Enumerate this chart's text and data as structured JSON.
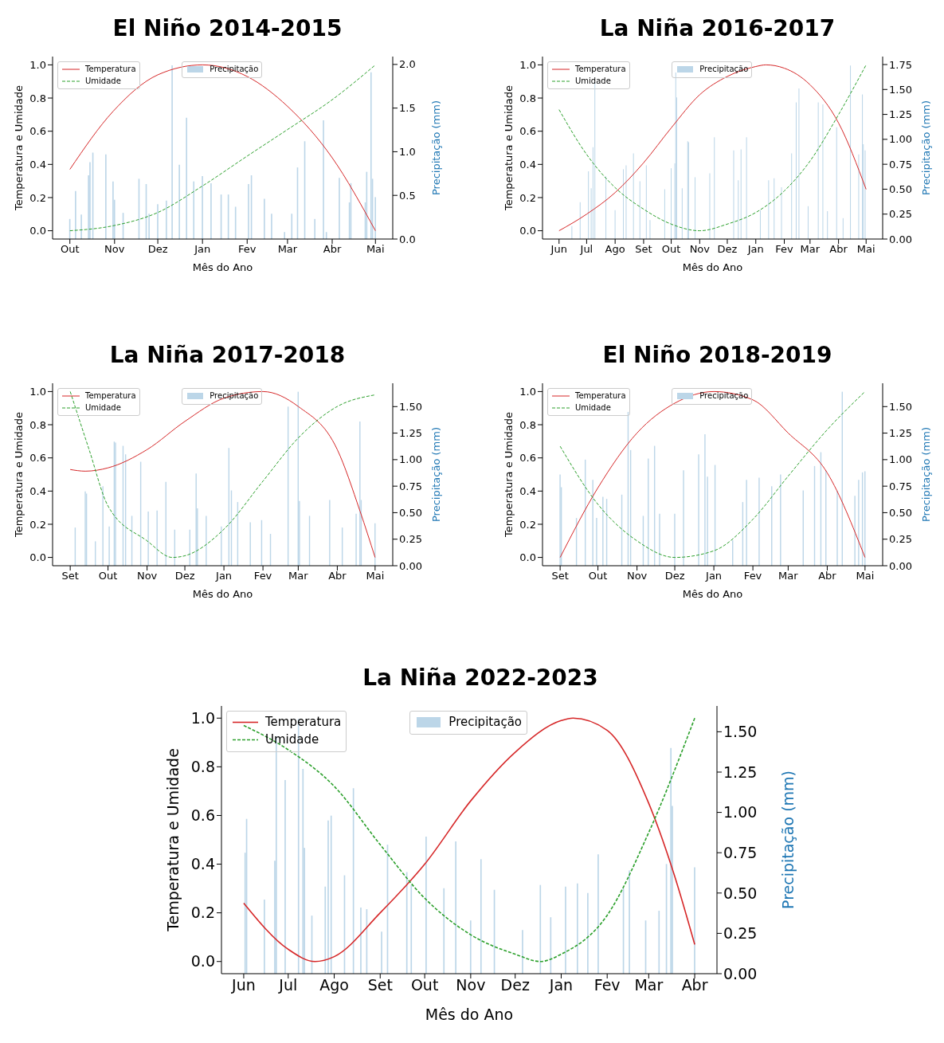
{
  "chart_data": [
    {
      "type": "bar",
      "title": "El Niño 2014-2015",
      "xlabel": "Mês do Ano",
      "ylabel": "Temperatura e Umidade",
      "y2label": "Precipitação (mm)",
      "legend": "top",
      "xlim": [
        "2014-09-19",
        "2015-05-13"
      ],
      "xticks": [
        {
          "value": "2014-10-01",
          "label": "Out"
        },
        {
          "value": "2014-11-01",
          "label": "Nov"
        },
        {
          "value": "2014-12-01",
          "label": "Dez"
        },
        {
          "value": "2015-01-01",
          "label": "Jan"
        },
        {
          "value": "2015-02-01",
          "label": "Fev"
        },
        {
          "value": "2015-03-01",
          "label": "Mar"
        },
        {
          "value": "2015-04-01",
          "label": "Abr"
        },
        {
          "value": "2015-05-01",
          "label": "Mai"
        }
      ],
      "ylim": [
        -0.05,
        1.05
      ],
      "yticks": [
        {
          "value": 0,
          "label": "0.0"
        },
        {
          "value": 0.2,
          "label": "0.2"
        },
        {
          "value": 0.4,
          "label": "0.4"
        },
        {
          "value": 0.6,
          "label": "0.6"
        },
        {
          "value": 0.8,
          "label": "0.8"
        },
        {
          "value": 1,
          "label": "1.0"
        }
      ],
      "y2lim": [
        0,
        2.09
      ],
      "y2ticks": [
        {
          "value": 0,
          "label": "0.0"
        },
        {
          "value": 0.5,
          "label": "0.5"
        },
        {
          "value": 1,
          "label": "1.0"
        },
        {
          "value": 1.5,
          "label": "1.5"
        },
        {
          "value": 2,
          "label": "2.0"
        }
      ],
      "series": [
        {
          "name": "Temperatura",
          "type": "line",
          "color": "#d62728",
          "line_style": "solid",
          "x": [
            "2014-10-01",
            "2014-10-31",
            "2014-12-01",
            "2015-01-01",
            "2015-02-01",
            "2015-03-01",
            "2015-04-01",
            "2015-05-01"
          ],
          "values": [
            0.37,
            0.72,
            0.94,
            1.0,
            0.93,
            0.75,
            0.44,
            0.0
          ]
        },
        {
          "name": "Umidade",
          "type": "line",
          "color": "#2ca02c",
          "line_style": "dashed",
          "x": [
            "2014-10-01",
            "2014-10-31",
            "2014-12-01",
            "2015-01-01",
            "2015-02-01",
            "2015-03-01",
            "2015-04-01",
            "2015-05-01"
          ],
          "values": [
            0.0,
            0.03,
            0.11,
            0.27,
            0.45,
            0.61,
            0.79,
            1.0
          ]
        },
        {
          "name": "Precipitação",
          "axis": "y2",
          "color": "#bcd6e8",
          "x": [
            "2014-10-01",
            "2014-10-05",
            "2014-10-09",
            "2014-10-14",
            "2014-10-15",
            "2014-10-17",
            "2014-10-26",
            "2014-10-31",
            "2014-11-01",
            "2014-11-07",
            "2014-11-18",
            "2014-11-23",
            "2014-11-25",
            "2014-12-01",
            "2014-12-07",
            "2014-12-11",
            "2014-12-16",
            "2014-12-21",
            "2014-12-26",
            "2015-01-01",
            "2015-01-07",
            "2015-01-14",
            "2015-01-19",
            "2015-01-24",
            "2015-02-02",
            "2015-02-04",
            "2015-02-13",
            "2015-02-18",
            "2015-02-27",
            "2015-03-04",
            "2015-03-08",
            "2015-03-13",
            "2015-03-20",
            "2015-03-26",
            "2015-03-28",
            "2015-04-06",
            "2015-04-13",
            "2015-04-14",
            "2015-04-24",
            "2015-04-25",
            "2015-04-28",
            "2015-04-29",
            "2015-05-01"
          ],
          "values": [
            0.23,
            0.55,
            0.28,
            0.73,
            0.88,
            0.99,
            0.97,
            0.66,
            0.45,
            0.3,
            0.69,
            0.63,
            0.29,
            0.4,
            0.44,
            1.99,
            0.85,
            1.39,
            0.66,
            0.72,
            0.64,
            0.51,
            0.51,
            0.37,
            0.63,
            0.73,
            0.46,
            0.29,
            0.08,
            0.29,
            0.82,
            1.12,
            0.23,
            1.36,
            0.08,
            0.7,
            0.42,
            0.64,
            0.42,
            0.77,
            1.91,
            0.69,
            0.48
          ]
        }
      ]
    },
    {
      "type": "bar",
      "title": "La Niña 2016-2017",
      "xlabel": "Mês do Ano",
      "ylabel": "Temperatura e Umidade",
      "y2label": "Precipitação (mm)",
      "legend": "top",
      "xlim": [
        "2016-05-14",
        "2017-05-19"
      ],
      "xticks": [
        {
          "value": "2016-06-01",
          "label": "Jun"
        },
        {
          "value": "2016-07-01",
          "label": "Jul"
        },
        {
          "value": "2016-08-01",
          "label": "Ago"
        },
        {
          "value": "2016-09-01",
          "label": "Set"
        },
        {
          "value": "2016-10-01",
          "label": "Out"
        },
        {
          "value": "2016-11-01",
          "label": "Nov"
        },
        {
          "value": "2016-12-01",
          "label": "Dez"
        },
        {
          "value": "2017-01-01",
          "label": "Jan"
        },
        {
          "value": "2017-02-01",
          "label": "Fev"
        },
        {
          "value": "2017-03-01",
          "label": "Mar"
        },
        {
          "value": "2017-04-01",
          "label": "Abr"
        },
        {
          "value": "2017-05-01",
          "label": "Mai"
        }
      ],
      "ylim": [
        -0.05,
        1.05
      ],
      "yticks": [
        {
          "value": 0,
          "label": "0.0"
        },
        {
          "value": 0.2,
          "label": "0.2"
        },
        {
          "value": 0.4,
          "label": "0.4"
        },
        {
          "value": 0.6,
          "label": "0.6"
        },
        {
          "value": 0.8,
          "label": "0.8"
        },
        {
          "value": 1,
          "label": "1.0"
        }
      ],
      "y2lim": [
        0,
        1.83
      ],
      "y2ticks": [
        {
          "value": 0,
          "label": "0.00"
        },
        {
          "value": 0.25,
          "label": "0.25"
        },
        {
          "value": 0.5,
          "label": "0.50"
        },
        {
          "value": 0.75,
          "label": "0.75"
        },
        {
          "value": 1,
          "label": "1.00"
        },
        {
          "value": 1.25,
          "label": "1.25"
        },
        {
          "value": 1.5,
          "label": "1.50"
        },
        {
          "value": 1.75,
          "label": "1.75"
        }
      ],
      "series": [
        {
          "name": "Temperatura",
          "type": "line",
          "color": "#d62728",
          "line_style": "solid",
          "x": [
            "2016-06-01",
            "2016-07-01",
            "2016-08-01",
            "2016-09-01",
            "2016-10-01",
            "2016-11-01",
            "2016-12-01",
            "2017-01-01",
            "2017-01-12",
            "2017-02-01",
            "2017-03-01",
            "2017-04-01",
            "2017-05-01"
          ],
          "values": [
            0.0,
            0.1,
            0.23,
            0.41,
            0.62,
            0.82,
            0.93,
            0.99,
            1.0,
            0.98,
            0.88,
            0.65,
            0.25
          ]
        },
        {
          "name": "Umidade",
          "type": "line",
          "color": "#2ca02c",
          "line_style": "dashed",
          "x": [
            "2016-06-01",
            "2016-07-01",
            "2016-08-01",
            "2016-09-01",
            "2016-10-01",
            "2016-11-01",
            "2016-12-01",
            "2017-01-01",
            "2017-02-01",
            "2017-03-01",
            "2017-04-01",
            "2017-05-01"
          ],
          "values": [
            0.73,
            0.46,
            0.26,
            0.13,
            0.04,
            0.0,
            0.04,
            0.11,
            0.24,
            0.42,
            0.7,
            1.0
          ]
        },
        {
          "name": "Precipitação",
          "axis": "y2",
          "color": "#bcd6e8",
          "x": [
            "2016-06-15",
            "2016-06-24",
            "2016-07-03",
            "2016-07-06",
            "2016-07-08",
            "2016-07-10",
            "2016-07-22",
            "2016-08-01",
            "2016-08-10",
            "2016-08-13",
            "2016-08-21",
            "2016-08-28",
            "2016-09-04",
            "2016-09-08",
            "2016-09-24",
            "2016-10-01",
            "2016-10-05",
            "2016-10-06",
            "2016-10-07",
            "2016-10-13",
            "2016-10-19",
            "2016-10-20",
            "2016-10-27",
            "2016-11-12",
            "2016-11-17",
            "2016-12-08",
            "2016-12-13",
            "2016-12-16",
            "2016-12-22",
            "2017-01-06",
            "2017-01-15",
            "2017-01-21",
            "2017-01-29",
            "2017-02-09",
            "2017-02-14",
            "2017-02-17",
            "2017-02-27",
            "2017-03-10",
            "2017-03-15",
            "2017-03-20",
            "2017-03-30",
            "2017-04-06",
            "2017-04-14",
            "2017-04-23",
            "2017-04-27",
            "2017-04-28",
            "2017-04-30"
          ],
          "values": [
            0.13,
            0.37,
            0.68,
            0.51,
            0.92,
            1.57,
            0.63,
            0.29,
            0.7,
            0.74,
            0.86,
            0.58,
            0.74,
            0.19,
            0.5,
            0.71,
            0.76,
            1.67,
            1.42,
            0.51,
            0.98,
            0.97,
            0.62,
            0.66,
            1.02,
            0.89,
            0.59,
            0.9,
            1.02,
            0.29,
            0.59,
            0.61,
            0.52,
            0.86,
            1.37,
            1.51,
            0.33,
            1.37,
            1.35,
            0.28,
            1.12,
            0.21,
            1.74,
            0.85,
            1.45,
            0.95,
            0.89
          ]
        }
      ]
    },
    {
      "type": "bar",
      "title": "La Niña 2017-2018",
      "xlabel": "Mês do Ano",
      "ylabel": "Temperatura e Umidade",
      "y2label": "Precipitação (mm)",
      "legend": "top",
      "xlim": [
        "2017-08-18",
        "2018-05-15"
      ],
      "xticks": [
        {
          "value": "2017-09-01",
          "label": "Set"
        },
        {
          "value": "2017-10-01",
          "label": "Out"
        },
        {
          "value": "2017-11-01",
          "label": "Nov"
        },
        {
          "value": "2017-12-01",
          "label": "Dez"
        },
        {
          "value": "2018-01-01",
          "label": "Jan"
        },
        {
          "value": "2018-02-01",
          "label": "Fev"
        },
        {
          "value": "2018-03-01",
          "label": "Mar"
        },
        {
          "value": "2018-04-01",
          "label": "Abr"
        },
        {
          "value": "2018-05-01",
          "label": "Mai"
        }
      ],
      "ylim": [
        -0.05,
        1.05
      ],
      "yticks": [
        {
          "value": 0,
          "label": "0.0"
        },
        {
          "value": 0.2,
          "label": "0.2"
        },
        {
          "value": 0.4,
          "label": "0.4"
        },
        {
          "value": 0.6,
          "label": "0.6"
        },
        {
          "value": 0.8,
          "label": "0.8"
        },
        {
          "value": 1,
          "label": "1.0"
        }
      ],
      "y2lim": [
        0,
        1.72
      ],
      "y2ticks": [
        {
          "value": 0,
          "label": "0.00"
        },
        {
          "value": 0.25,
          "label": "0.25"
        },
        {
          "value": 0.5,
          "label": "0.50"
        },
        {
          "value": 0.75,
          "label": "0.75"
        },
        {
          "value": 1,
          "label": "1.00"
        },
        {
          "value": 1.25,
          "label": "1.25"
        },
        {
          "value": 1.5,
          "label": "1.50"
        }
      ],
      "series": [
        {
          "name": "Temperatura",
          "type": "line",
          "color": "#d62728",
          "line_style": "solid",
          "x": [
            "2017-09-01",
            "2017-09-13",
            "2017-10-01",
            "2017-11-01",
            "2017-12-01",
            "2018-01-01",
            "2018-02-01",
            "2018-03-01",
            "2018-04-01",
            "2018-04-19",
            "2018-05-01"
          ],
          "values": [
            0.53,
            0.52,
            0.54,
            0.65,
            0.82,
            0.96,
            1.0,
            0.91,
            0.65,
            0.28,
            0.0
          ]
        },
        {
          "name": "Umidade",
          "type": "line",
          "color": "#2ca02c",
          "line_style": "dashed",
          "x": [
            "2017-09-01",
            "2017-09-16",
            "2017-10-01",
            "2017-11-01",
            "2017-11-21",
            "2017-12-01",
            "2018-01-01",
            "2018-02-01",
            "2018-03-01",
            "2018-04-01",
            "2018-05-01"
          ],
          "values": [
            1.0,
            0.65,
            0.31,
            0.1,
            0.0,
            0.01,
            0.17,
            0.46,
            0.72,
            0.91,
            0.98
          ]
        },
        {
          "name": "Precipitação",
          "axis": "y2",
          "color": "#bcd6e8",
          "x": [
            "2017-09-05",
            "2017-09-13",
            "2017-09-14",
            "2017-09-21",
            "2017-09-27",
            "2017-10-02",
            "2017-10-06",
            "2017-10-07",
            "2017-10-13",
            "2017-10-15",
            "2017-10-20",
            "2017-10-27",
            "2017-11-02",
            "2017-11-09",
            "2017-11-16",
            "2017-11-23",
            "2017-12-05",
            "2017-12-10",
            "2017-12-11",
            "2017-12-18",
            "2017-12-30",
            "2018-01-05",
            "2018-01-07",
            "2018-01-12",
            "2018-01-22",
            "2018-01-31",
            "2018-02-07",
            "2018-02-21",
            "2018-03-01",
            "2018-03-02",
            "2018-03-10",
            "2018-03-26",
            "2018-04-05",
            "2018-04-16",
            "2018-04-19",
            "2018-04-20",
            "2018-05-01"
          ],
          "values": [
            0.36,
            0.7,
            0.68,
            0.23,
            0.75,
            0.37,
            1.17,
            1.16,
            1.13,
            1.05,
            0.47,
            0.98,
            0.51,
            0.52,
            0.79,
            0.34,
            0.34,
            0.87,
            0.54,
            0.47,
            0.37,
            1.11,
            0.71,
            0.6,
            0.41,
            0.43,
            0.3,
            1.5,
            1.64,
            0.61,
            0.47,
            0.62,
            0.36,
            0.49,
            1.36,
            0.62,
            0.4
          ]
        }
      ]
    },
    {
      "type": "bar",
      "title": "El Niño 2018-2019",
      "xlabel": "Mês do Ano",
      "ylabel": "Temperatura e Umidade",
      "y2label": "Precipitação (mm)",
      "legend": "top",
      "xlim": [
        "2018-08-18",
        "2019-05-15"
      ],
      "xticks": [
        {
          "value": "2018-09-01",
          "label": "Set"
        },
        {
          "value": "2018-10-01",
          "label": "Out"
        },
        {
          "value": "2018-11-01",
          "label": "Nov"
        },
        {
          "value": "2018-12-01",
          "label": "Dez"
        },
        {
          "value": "2019-01-01",
          "label": "Jan"
        },
        {
          "value": "2019-02-01",
          "label": "Fev"
        },
        {
          "value": "2019-03-01",
          "label": "Mar"
        },
        {
          "value": "2019-04-01",
          "label": "Abr"
        },
        {
          "value": "2019-05-01",
          "label": "Mai"
        }
      ],
      "ylim": [
        -0.05,
        1.05
      ],
      "yticks": [
        {
          "value": 0,
          "label": "0.0"
        },
        {
          "value": 0.2,
          "label": "0.2"
        },
        {
          "value": 0.4,
          "label": "0.4"
        },
        {
          "value": 0.6,
          "label": "0.6"
        },
        {
          "value": 0.8,
          "label": "0.8"
        },
        {
          "value": 1,
          "label": "1.0"
        }
      ],
      "y2lim": [
        0,
        1.72
      ],
      "y2ticks": [
        {
          "value": 0,
          "label": "0.00"
        },
        {
          "value": 0.25,
          "label": "0.25"
        },
        {
          "value": 0.5,
          "label": "0.50"
        },
        {
          "value": 0.75,
          "label": "0.75"
        },
        {
          "value": 1,
          "label": "1.00"
        },
        {
          "value": 1.25,
          "label": "1.25"
        },
        {
          "value": 1.5,
          "label": "1.50"
        }
      ],
      "series": [
        {
          "name": "Temperatura",
          "type": "line",
          "color": "#d62728",
          "line_style": "solid",
          "x": [
            "2018-09-01",
            "2018-10-01",
            "2018-11-01",
            "2018-12-01",
            "2019-01-01",
            "2019-02-01",
            "2019-03-01",
            "2019-04-01",
            "2019-05-01"
          ],
          "values": [
            0.0,
            0.42,
            0.75,
            0.93,
            1.0,
            0.95,
            0.75,
            0.51,
            0.0
          ]
        },
        {
          "name": "Umidade",
          "type": "line",
          "color": "#2ca02c",
          "line_style": "dashed",
          "x": [
            "2018-09-01",
            "2018-10-01",
            "2018-11-01",
            "2018-12-01",
            "2019-01-01",
            "2019-02-01",
            "2019-03-01",
            "2019-04-01",
            "2019-05-01"
          ],
          "values": [
            0.67,
            0.32,
            0.1,
            0.0,
            0.04,
            0.23,
            0.49,
            0.77,
            1.0
          ]
        },
        {
          "name": "Precipitação",
          "axis": "y2",
          "color": "#bcd6e8",
          "x": [
            "2018-09-01",
            "2018-09-02",
            "2018-09-14",
            "2018-09-21",
            "2018-09-27",
            "2018-09-30",
            "2018-10-05",
            "2018-10-08",
            "2018-10-20",
            "2018-10-25",
            "2018-10-27",
            "2018-11-06",
            "2018-11-10",
            "2018-11-15",
            "2018-11-19",
            "2018-12-01",
            "2018-12-08",
            "2018-12-20",
            "2018-12-25",
            "2018-12-27",
            "2019-01-02",
            "2019-01-16",
            "2019-01-24",
            "2019-01-27",
            "2019-02-06",
            "2019-02-16",
            "2019-02-23",
            "2019-03-13",
            "2019-03-22",
            "2019-03-27",
            "2019-03-31",
            "2019-04-09",
            "2019-04-13",
            "2019-04-23",
            "2019-04-26",
            "2019-04-29",
            "2019-05-01"
          ],
          "values": [
            0.86,
            0.74,
            0.45,
            1.0,
            0.81,
            0.45,
            0.65,
            0.63,
            0.67,
            1.45,
            1.09,
            0.47,
            1.01,
            1.13,
            0.49,
            0.49,
            0.9,
            1.05,
            1.24,
            0.84,
            0.95,
            0.24,
            0.6,
            0.81,
            0.83,
            0.75,
            0.86,
            0.71,
            0.94,
            1.07,
            0.9,
            0.71,
            1.64,
            0.66,
            0.81,
            0.88,
            0.89
          ]
        }
      ]
    },
    {
      "type": "bar",
      "title": "La Niña 2022-2023",
      "xlabel": "Mês do Ano",
      "ylabel": "Temperatura e Umidade",
      "y2label": "Precipitação (mm)",
      "legend": "top",
      "xlim": [
        "2022-05-17",
        "2023-04-16"
      ],
      "xticks": [
        {
          "value": "2022-06-01",
          "label": "Jun"
        },
        {
          "value": "2022-07-01",
          "label": "Jul"
        },
        {
          "value": "2022-08-01",
          "label": "Ago"
        },
        {
          "value": "2022-09-01",
          "label": "Set"
        },
        {
          "value": "2022-10-01",
          "label": "Out"
        },
        {
          "value": "2022-11-01",
          "label": "Nov"
        },
        {
          "value": "2022-12-01",
          "label": "Dez"
        },
        {
          "value": "2023-01-01",
          "label": "Jan"
        },
        {
          "value": "2023-02-01",
          "label": "Fev"
        },
        {
          "value": "2023-03-01",
          "label": "Mar"
        },
        {
          "value": "2023-04-01",
          "label": "Abr"
        }
      ],
      "ylim": [
        -0.05,
        1.05
      ],
      "yticks": [
        {
          "value": 0,
          "label": "0.0"
        },
        {
          "value": 0.2,
          "label": "0.2"
        },
        {
          "value": 0.4,
          "label": "0.4"
        },
        {
          "value": 0.6,
          "label": "0.6"
        },
        {
          "value": 0.8,
          "label": "0.8"
        },
        {
          "value": 1,
          "label": "1.0"
        }
      ],
      "y2lim": [
        0,
        1.66
      ],
      "y2ticks": [
        {
          "value": 0,
          "label": "0.00"
        },
        {
          "value": 0.25,
          "label": "0.25"
        },
        {
          "value": 0.5,
          "label": "0.50"
        },
        {
          "value": 0.75,
          "label": "0.75"
        },
        {
          "value": 1,
          "label": "1.00"
        },
        {
          "value": 1.25,
          "label": "1.25"
        },
        {
          "value": 1.5,
          "label": "1.50"
        }
      ],
      "series": [
        {
          "name": "Temperatura",
          "type": "line",
          "color": "#d62728",
          "line_style": "solid",
          "x": [
            "2022-06-01",
            "2022-07-01",
            "2022-07-19",
            "2022-08-01",
            "2022-09-01",
            "2022-10-01",
            "2022-11-01",
            "2022-12-01",
            "2023-01-01",
            "2023-01-09",
            "2023-02-01",
            "2023-03-01",
            "2023-03-18",
            "2023-04-01"
          ],
          "values": [
            0.24,
            0.05,
            0.0,
            0.02,
            0.2,
            0.4,
            0.66,
            0.86,
            0.99,
            1.0,
            0.95,
            0.65,
            0.36,
            0.07
          ]
        },
        {
          "name": "Umidade",
          "type": "line",
          "color": "#2ca02c",
          "line_style": "dashed",
          "x": [
            "2022-06-01",
            "2022-07-01",
            "2022-08-01",
            "2022-09-01",
            "2022-10-01",
            "2022-11-01",
            "2022-12-01",
            "2022-12-18",
            "2023-01-01",
            "2023-02-01",
            "2023-03-01",
            "2023-04-01"
          ],
          "values": [
            0.97,
            0.87,
            0.72,
            0.48,
            0.26,
            0.11,
            0.03,
            0.0,
            0.03,
            0.19,
            0.53,
            1.0
          ]
        },
        {
          "name": "Precipitação",
          "axis": "y2",
          "color": "#bcd6e8",
          "x": [
            "2022-06-02",
            "2022-06-03",
            "2022-06-15",
            "2022-06-22",
            "2022-06-23",
            "2022-06-29",
            "2022-07-08",
            "2022-07-11",
            "2022-07-12",
            "2022-07-17",
            "2022-07-26",
            "2022-07-28",
            "2022-07-30",
            "2022-08-08",
            "2022-08-14",
            "2022-08-19",
            "2022-08-23",
            "2022-09-02",
            "2022-09-06",
            "2022-09-19",
            "2022-09-22",
            "2022-10-02",
            "2022-10-14",
            "2022-10-22",
            "2022-11-01",
            "2022-11-08",
            "2022-11-17",
            "2022-12-06",
            "2022-12-18",
            "2022-12-25",
            "2023-01-04",
            "2023-01-12",
            "2023-01-19",
            "2023-01-26",
            "2023-02-12",
            "2023-02-16",
            "2023-02-27",
            "2023-03-08",
            "2023-03-13",
            "2023-03-16",
            "2023-03-17",
            "2023-04-01"
          ],
          "values": [
            0.75,
            0.96,
            0.46,
            0.7,
            1.47,
            1.2,
            1.58,
            1.27,
            0.78,
            0.36,
            0.54,
            0.95,
            0.98,
            0.61,
            1.15,
            0.41,
            0.4,
            0.26,
            0.8,
            0.63,
            0.55,
            0.85,
            0.53,
            0.82,
            0.33,
            0.71,
            0.52,
            0.27,
            0.55,
            0.35,
            0.54,
            0.56,
            0.5,
            0.74,
            0.53,
            0.64,
            0.33,
            0.39,
            0.68,
            1.4,
            1.04,
            0.66
          ]
        }
      ]
    }
  ]
}
